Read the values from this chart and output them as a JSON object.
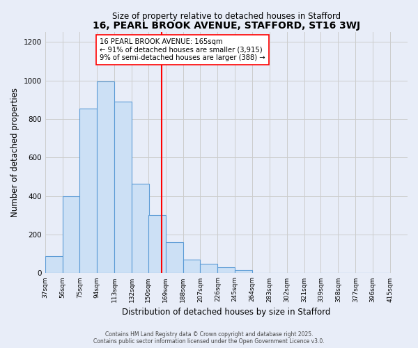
{
  "title": "16, PEARL BROOK AVENUE, STAFFORD, ST16 3WJ",
  "subtitle": "Size of property relative to detached houses in Stafford",
  "xlabel": "Distribution of detached houses by size in Stafford",
  "ylabel": "Number of detached properties",
  "bin_labels": [
    "37sqm",
    "56sqm",
    "75sqm",
    "94sqm",
    "113sqm",
    "132sqm",
    "150sqm",
    "169sqm",
    "188sqm",
    "207sqm",
    "226sqm",
    "245sqm",
    "264sqm",
    "283sqm",
    "302sqm",
    "321sqm",
    "339sqm",
    "358sqm",
    "377sqm",
    "396sqm",
    "415sqm"
  ],
  "bin_edges": [
    37,
    56,
    75,
    94,
    113,
    132,
    150,
    169,
    188,
    207,
    226,
    245,
    264,
    283,
    302,
    321,
    339,
    358,
    377,
    396,
    415
  ],
  "bar_heights": [
    90,
    400,
    855,
    995,
    890,
    465,
    300,
    160,
    70,
    50,
    32,
    15,
    3,
    1,
    0,
    0,
    0,
    0,
    0,
    0
  ],
  "bar_color": "#cce0f5",
  "bar_edge_color": "#5b9bd5",
  "vline_x": 165,
  "vline_color": "red",
  "annotation_line1": "16 PEARL BROOK AVENUE: 165sqm",
  "annotation_line2": "← 91% of detached houses are smaller (3,915)",
  "annotation_line3": "9% of semi-detached houses are larger (388) →",
  "annotation_box_edge_color": "red",
  "annotation_box_face_color": "white",
  "ylim": [
    0,
    1250
  ],
  "yticks": [
    0,
    200,
    400,
    600,
    800,
    1000,
    1200
  ],
  "footer1": "Contains HM Land Registry data © Crown copyright and database right 2025.",
  "footer2": "Contains public sector information licensed under the Open Government Licence v3.0.",
  "bg_color": "#e8edf8",
  "grid_color": "#cccccc"
}
